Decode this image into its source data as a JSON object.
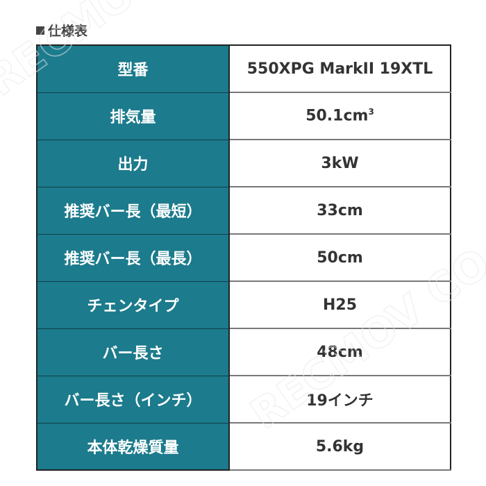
{
  "heading": {
    "icon": "black-square-icon",
    "text": "仕様表"
  },
  "colors": {
    "label_bg": "#1c7b8c",
    "label_text": "#ffffff",
    "value_text": "#333333"
  },
  "watermark": "RECMOV CO.,LTD",
  "specs": [
    {
      "label": "型番",
      "value": "550XPG MarkII 19XTL"
    },
    {
      "label": "排気量",
      "value": "50.1cm",
      "sup": "3"
    },
    {
      "label": "出力",
      "value": "3kW"
    },
    {
      "label": "推奨バー長（最短）",
      "value": "33cm"
    },
    {
      "label": "推奨バー長（最長）",
      "value": "50cm"
    },
    {
      "label": "チェンタイプ",
      "value": "H25"
    },
    {
      "label": "バー長さ",
      "value": "48cm"
    },
    {
      "label": "バー長さ（インチ）",
      "value": "19インチ"
    },
    {
      "label": "本体乾燥質量",
      "value": "5.6kg"
    }
  ]
}
